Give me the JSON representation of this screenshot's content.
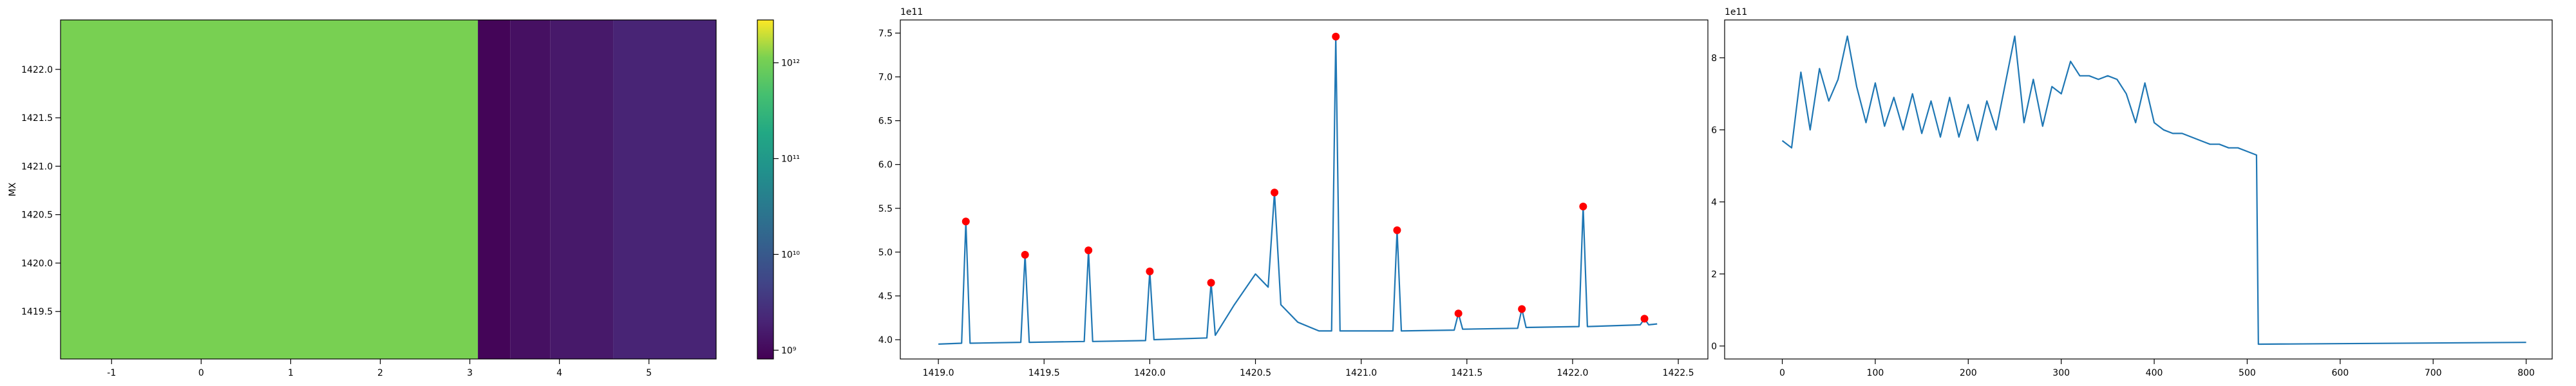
{
  "chart_data": [
    {
      "type": "heatmap",
      "ylabel": "MX",
      "colormap": "viridis",
      "color_scale": "log",
      "x_edges": [
        -1.57,
        3.09,
        3.45,
        3.9,
        4.6,
        5.75
      ],
      "values": [
        1100000000000.0,
        900000000.0,
        1200000000.0,
        1500000000.0,
        2000000000.0
      ],
      "xlim": [
        -1.57,
        5.75
      ],
      "xticks": [
        -1,
        0,
        1,
        2,
        3,
        4,
        5
      ],
      "ylim": [
        1419.01,
        1422.51
      ],
      "yticks": [
        1419.5,
        {
          "value": 1420,
          "label": "1420.0"
        },
        1420.5,
        {
          "value": 1421,
          "label": "1421.0"
        },
        1421.5,
        {
          "value": 1422,
          "label": "1422.0"
        }
      ],
      "clim": [
        810000000.0,
        2800000000000.0
      ],
      "cticks": [
        {
          "value": 1000000000.0,
          "label": "10⁹"
        },
        {
          "value": 10000000000.0,
          "label": "10¹⁰"
        },
        {
          "value": 100000000000.0,
          "label": "10¹¹"
        },
        {
          "value": 1000000000000.0,
          "label": "10¹²"
        }
      ]
    },
    {
      "type": "line",
      "y_offset_label": "1e11",
      "xlim": [
        1418.82,
        1422.64
      ],
      "ylim": [
        3.78,
        7.65
      ],
      "xticks": [
        {
          "value": 1419,
          "label": "1419.0"
        },
        1419.5,
        {
          "value": 1420,
          "label": "1420.0"
        },
        1420.5,
        {
          "value": 1421,
          "label": "1421.0"
        },
        1421.5,
        {
          "value": 1422,
          "label": "1422.0"
        },
        1422.5
      ],
      "yticks": [
        {
          "value": 4,
          "label": "4.0"
        },
        4.5,
        {
          "value": 5,
          "label": "5.0"
        },
        5.5,
        {
          "value": 6,
          "label": "6.0"
        },
        6.5,
        {
          "value": 7,
          "label": "7.0"
        },
        7.5
      ],
      "series": [
        {
          "color": "#1f77b4",
          "style": "line",
          "x": [
            1419.0,
            1419.11,
            1419.13,
            1419.15,
            1419.39,
            1419.41,
            1419.43,
            1419.69,
            1419.71,
            1419.73,
            1419.98,
            1420.0,
            1420.02,
            1420.27,
            1420.29,
            1420.31,
            1420.4,
            1420.5,
            1420.56,
            1420.59,
            1420.62,
            1420.7,
            1420.8,
            1420.86,
            1420.88,
            1420.9,
            1421.15,
            1421.17,
            1421.19,
            1421.44,
            1421.46,
            1421.48,
            1421.74,
            1421.76,
            1421.78,
            1422.03,
            1422.05,
            1422.07,
            1422.32,
            1422.34,
            1422.36,
            1422.4
          ],
          "values": [
            3.95,
            3.96,
            5.35,
            3.96,
            3.97,
            4.97,
            3.97,
            3.98,
            5.02,
            3.98,
            3.99,
            4.78,
            4.0,
            4.02,
            4.65,
            4.05,
            4.4,
            4.75,
            4.6,
            5.68,
            4.4,
            4.2,
            4.1,
            4.1,
            7.46,
            4.1,
            4.1,
            5.25,
            4.1,
            4.11,
            4.3,
            4.12,
            4.13,
            4.35,
            4.14,
            4.15,
            5.52,
            4.15,
            4.17,
            4.24,
            4.17,
            4.18
          ]
        },
        {
          "color": "#ff0000",
          "style": "markers",
          "x": [
            1419.13,
            1419.41,
            1419.71,
            1420.0,
            1420.29,
            1420.59,
            1420.88,
            1421.17,
            1421.46,
            1421.76,
            1422.05,
            1422.34
          ],
          "values": [
            5.35,
            4.97,
            5.02,
            4.78,
            4.65,
            5.68,
            7.46,
            5.25,
            4.3,
            4.35,
            5.52,
            4.24
          ]
        }
      ]
    },
    {
      "type": "line",
      "y_offset_label": "1e11",
      "xlim": [
        -62,
        828
      ],
      "ylim": [
        -0.36,
        9.05
      ],
      "xticks": [
        0,
        100,
        200,
        300,
        400,
        500,
        600,
        700,
        800
      ],
      "yticks": [
        0,
        2,
        4,
        6,
        8
      ],
      "series": [
        {
          "color": "#1f77b4",
          "style": "line",
          "x": [
            0,
            10,
            20,
            30,
            40,
            50,
            60,
            70,
            80,
            90,
            100,
            110,
            120,
            130,
            140,
            150,
            160,
            170,
            180,
            190,
            200,
            210,
            220,
            230,
            240,
            250,
            260,
            270,
            280,
            290,
            300,
            310,
            320,
            330,
            340,
            350,
            360,
            370,
            380,
            390,
            400,
            410,
            420,
            430,
            440,
            450,
            460,
            470,
            480,
            490,
            500,
            510,
            512,
            800
          ],
          "values": [
            5.7,
            5.5,
            7.6,
            6.0,
            7.7,
            6.8,
            7.4,
            8.6,
            7.2,
            6.2,
            7.3,
            6.1,
            6.9,
            6.0,
            7.0,
            5.9,
            6.8,
            5.8,
            6.9,
            5.8,
            6.7,
            5.7,
            6.8,
            6.0,
            7.3,
            8.6,
            6.2,
            7.4,
            6.1,
            7.2,
            7.0,
            7.9,
            7.5,
            7.5,
            7.4,
            7.5,
            7.4,
            7.0,
            6.2,
            7.3,
            6.2,
            6.0,
            5.9,
            5.9,
            5.8,
            5.7,
            5.6,
            5.6,
            5.5,
            5.5,
            5.4,
            5.3,
            0.05,
            0.1
          ]
        }
      ]
    }
  ]
}
